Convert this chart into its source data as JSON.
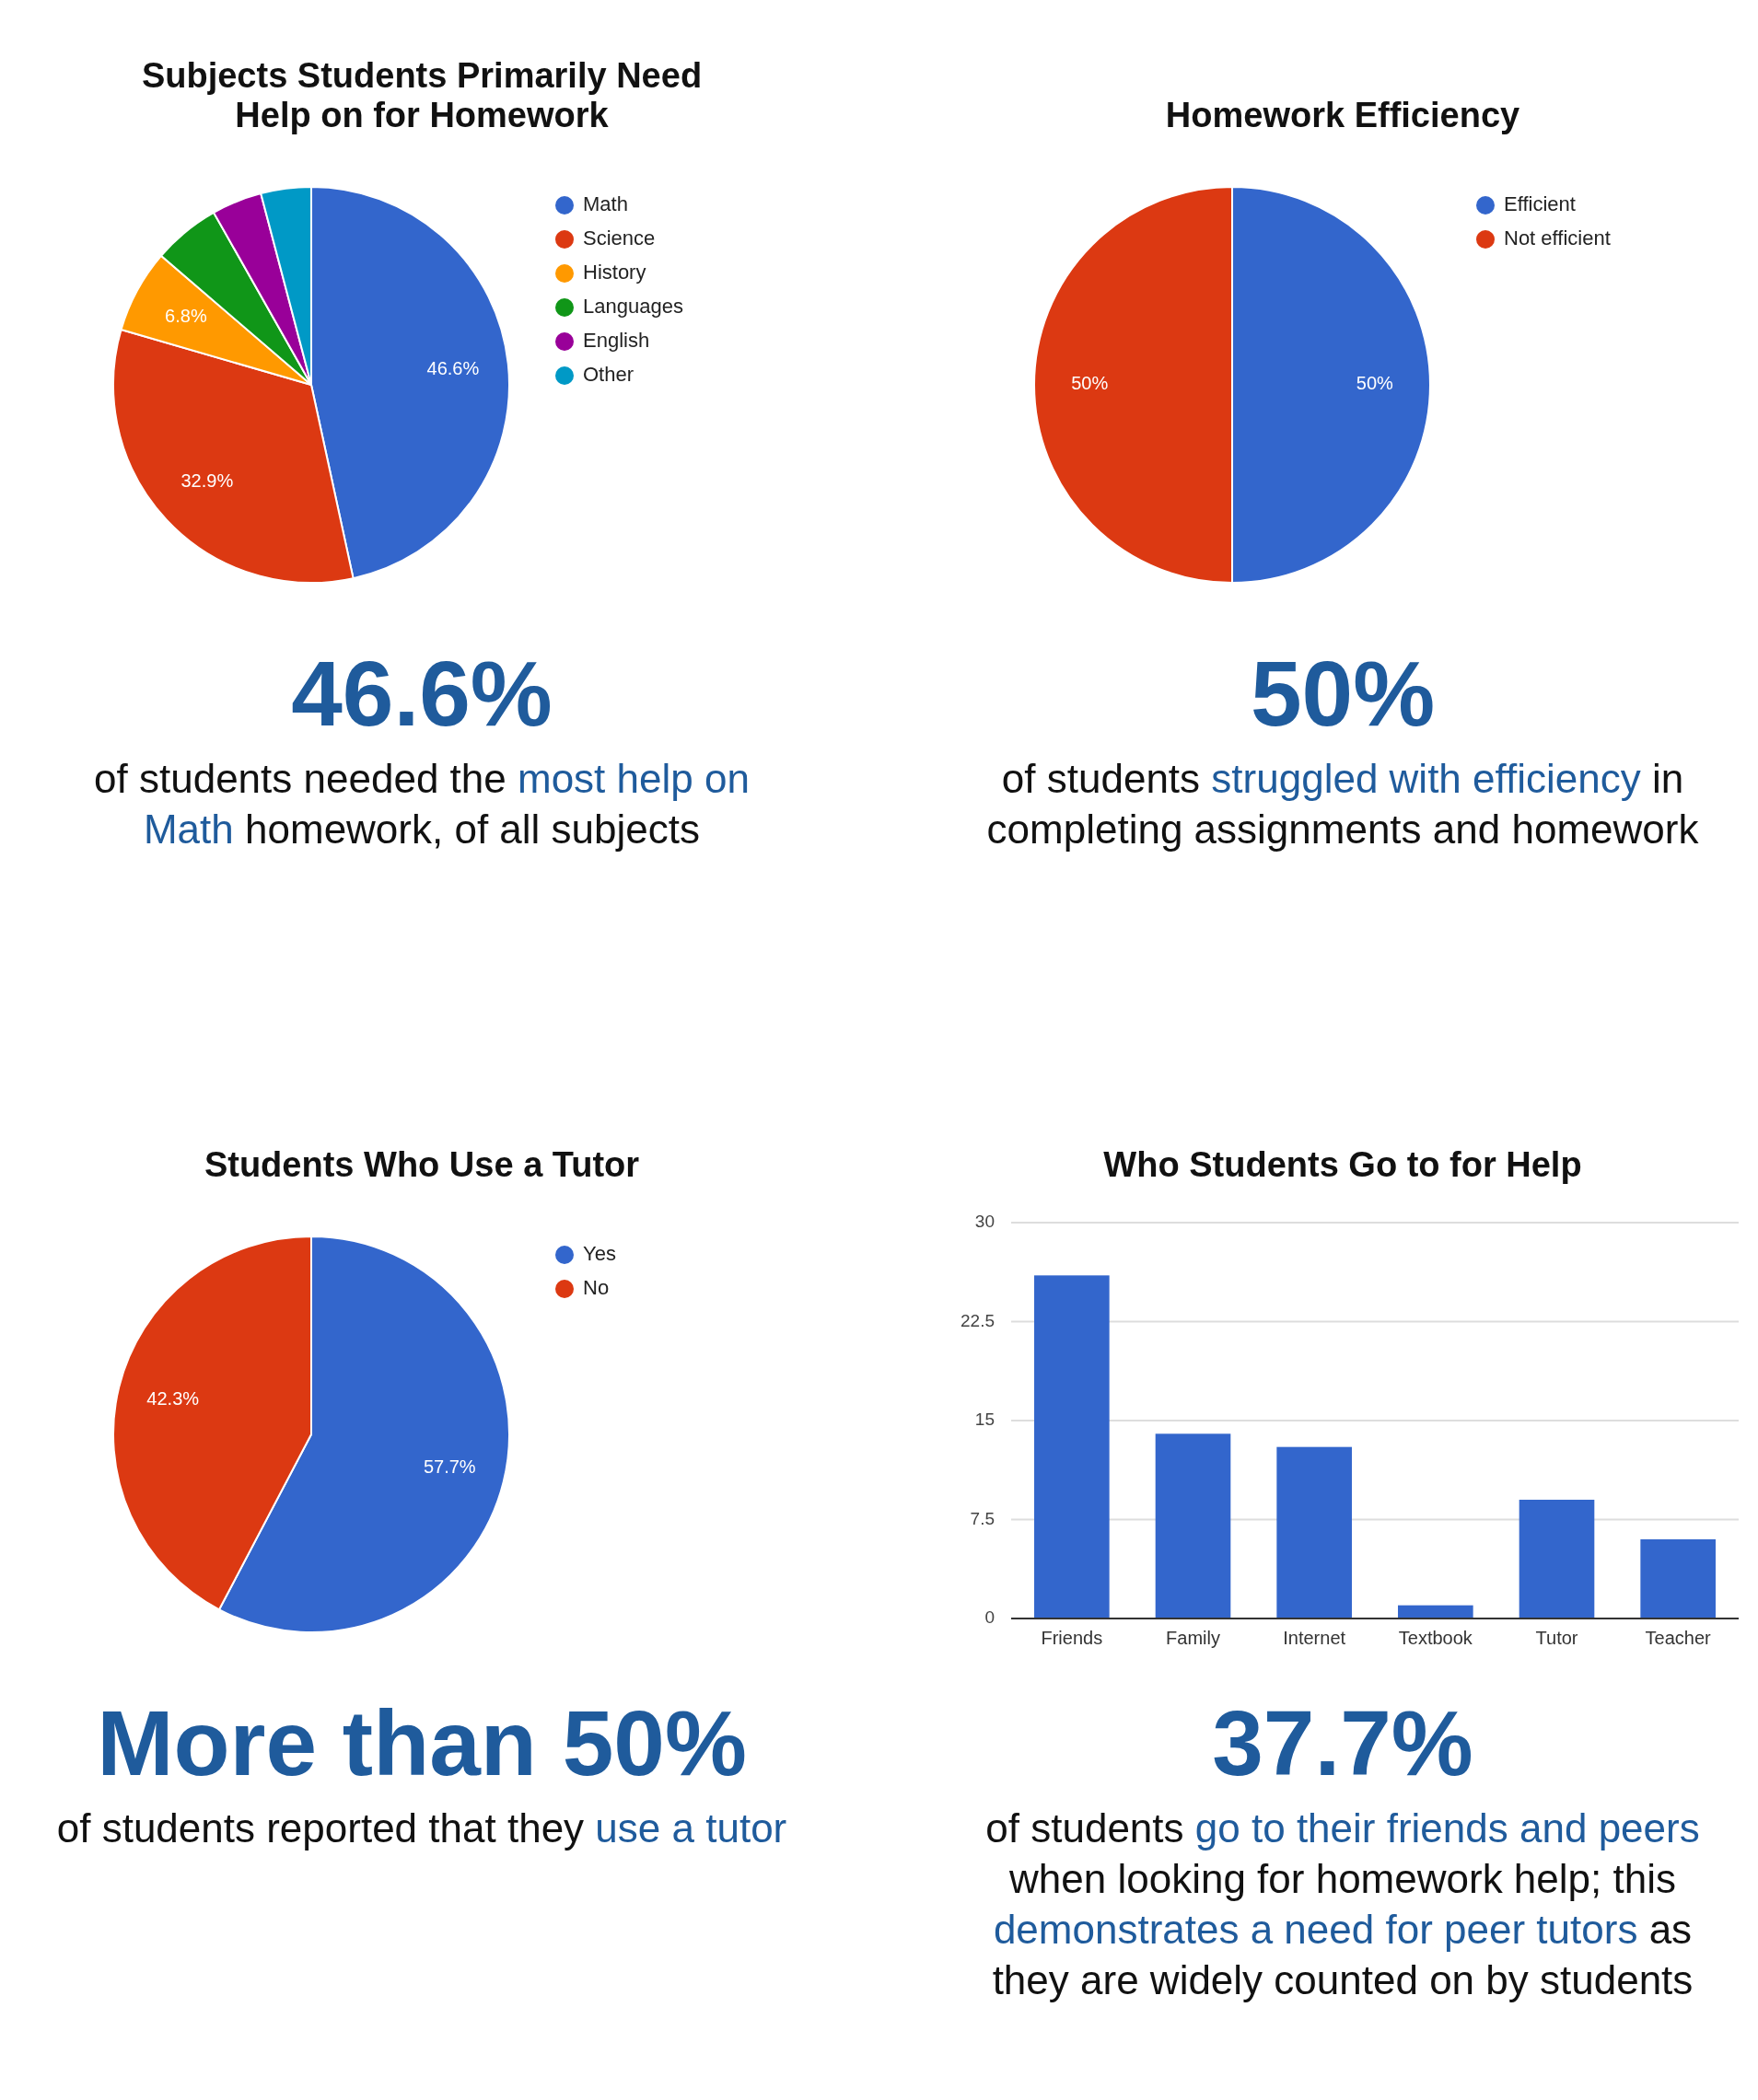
{
  "chart_data": [
    {
      "type": "pie",
      "title": "Subjects Students Primarily Need Help on for Homework",
      "categories": [
        "Math",
        "Science",
        "History",
        "Languages",
        "English",
        "Other"
      ],
      "values": [
        46.6,
        32.9,
        6.8,
        5.5,
        4.1,
        4.1
      ],
      "colors": [
        "#3366cc",
        "#dc3912",
        "#ff9900",
        "#109618",
        "#990099",
        "#0099c6"
      ],
      "value_labels": [
        "46.6%",
        "32.9%",
        "6.8%",
        null,
        null,
        null
      ],
      "legend": "right",
      "annotations": [
        "46.6%",
        "of students needed the",
        "most help on Math",
        "homework, of all subjects"
      ]
    },
    {
      "type": "pie",
      "title": "Homework Efficiency",
      "categories": [
        "Efficient",
        "Not efficient"
      ],
      "values": [
        50,
        50
      ],
      "colors": [
        "#3366cc",
        "#dc3912"
      ],
      "value_labels": [
        "50%",
        "50%"
      ],
      "legend": "right",
      "annotations": [
        "50%",
        "of students",
        "struggled with efficiency",
        "in completing assignments and homework"
      ]
    },
    {
      "type": "pie",
      "title": "Students Who Use a Tutor",
      "categories": [
        "Yes",
        "No"
      ],
      "values": [
        57.7,
        42.3
      ],
      "colors": [
        "#3366cc",
        "#dc3912"
      ],
      "value_labels": [
        "57.7%",
        "42.3%"
      ],
      "legend": "right",
      "annotations": [
        "More than 50%",
        "of students reported that they",
        "use a tutor"
      ]
    },
    {
      "type": "bar",
      "title": "Who Students Go to for Help",
      "categories": [
        "Friends",
        "Family",
        "Internet",
        "Textbook",
        "Tutor",
        "Teacher"
      ],
      "values": [
        26,
        14,
        13,
        1,
        9,
        6
      ],
      "color": "#3366cc",
      "ylim": [
        0,
        30
      ],
      "yticks": [
        0,
        7.5,
        15,
        22.5,
        30
      ],
      "grid": "y",
      "annotations": [
        "37.7%",
        "of students",
        "go to their friends and peers",
        "when looking for homework help; this",
        "demonstrates a need for peer tutors",
        "as they are widely counted on by students"
      ]
    }
  ]
}
